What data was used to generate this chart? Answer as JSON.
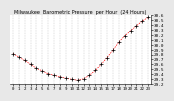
{
  "title": "Milwaukee  Barometric Pressure  per Hour  (24 Hours)",
  "hours": [
    0,
    1,
    2,
    3,
    4,
    5,
    6,
    7,
    8,
    9,
    10,
    11,
    12,
    13,
    14,
    15,
    16,
    17,
    18,
    19,
    20,
    21,
    22,
    23
  ],
  "pressure": [
    29.82,
    29.75,
    29.68,
    29.6,
    29.52,
    29.47,
    29.41,
    29.38,
    29.35,
    29.32,
    29.3,
    29.28,
    29.31,
    29.38,
    29.48,
    29.6,
    29.74,
    29.89,
    30.05,
    30.18,
    30.28,
    30.38,
    30.48,
    30.55
  ],
  "line_color": "#ff0000",
  "marker_color": "#000000",
  "bg_color": "#e8e8e8",
  "plot_bg_color": "#ffffff",
  "grid_color": "#aaaaaa",
  "ylim_min": 29.2,
  "ylim_max": 30.6,
  "ytick_interval": 0.1,
  "ylabel_fontsize": 3.2,
  "xlabel_fontsize": 3.0,
  "title_fontsize": 3.5
}
